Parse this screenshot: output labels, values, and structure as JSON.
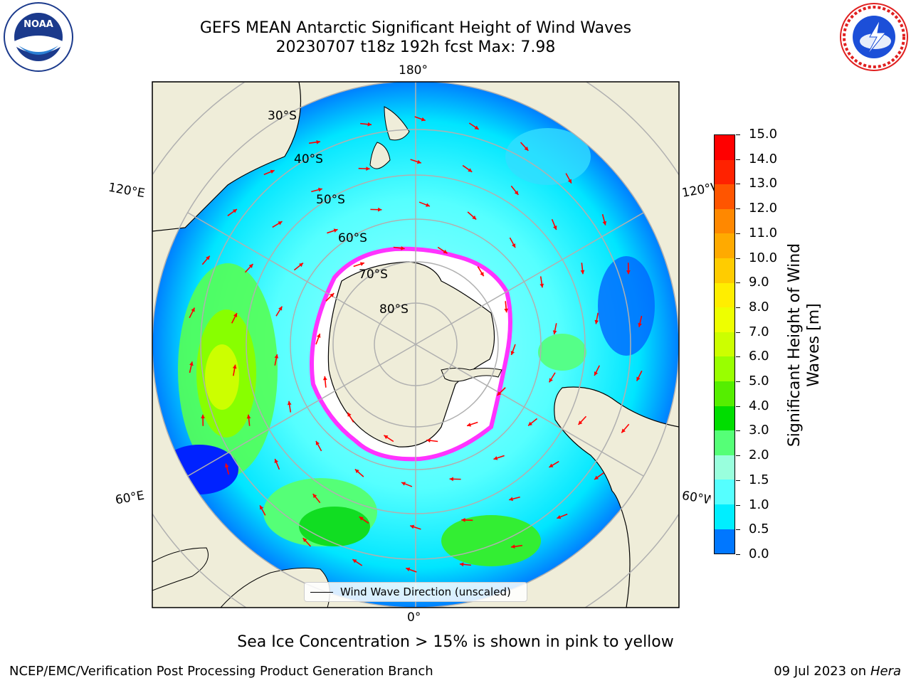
{
  "header": {
    "title_line1": "GEFS MEAN Antarctic Significant Height of Wind Waves",
    "title_line2": "20230707 t18z 192h fcst   Max: 7.98"
  },
  "logos": {
    "left": "noaa-logo",
    "right": "nws-logo"
  },
  "map": {
    "projection": "south-polar-stereographic",
    "lon_labels": {
      "top": "180°",
      "bottom": "0°",
      "left_upper": "120°E",
      "left_lower": "60°E",
      "right_upper": "120°W",
      "right_lower": "60°W"
    },
    "lat_labels": [
      "30°S",
      "40°S",
      "50°S",
      "60°S",
      "70°S",
      "80°S"
    ],
    "legend_label": "Wind Wave Direction (unscaled)",
    "land_color": "#efedd9",
    "ice_color": "#ff33ff",
    "arrow_color": "#ff0000"
  },
  "colorbar": {
    "title": "Significant Height of Wind Waves [m]",
    "tick_labels": [
      "15.0",
      "14.0",
      "13.0",
      "12.0",
      "11.0",
      "10.0",
      "9.0",
      "8.0",
      "7.0",
      "6.0",
      "5.0",
      "4.0",
      "3.0",
      "2.0",
      "1.5",
      "1.0",
      "0.5",
      "0.0"
    ],
    "colors_top_to_bottom": [
      "#ff0000",
      "#ff2200",
      "#ff5500",
      "#ff8800",
      "#ffaa00",
      "#ffcc00",
      "#ffee00",
      "#eeff00",
      "#ccff00",
      "#99ff00",
      "#55ee00",
      "#00dd00",
      "#55ff77",
      "#99ffdd",
      "#55ffff",
      "#00eeff",
      "#0077ff",
      "#0000ff"
    ]
  },
  "caption": "Sea Ice Concentration > 15% is shown in pink to yellow",
  "footer": {
    "left": "NCEP/EMC/Verification Post Processing Product Generation Branch",
    "right_date": "09 Jul 2023 on ",
    "right_host": "Hera"
  }
}
